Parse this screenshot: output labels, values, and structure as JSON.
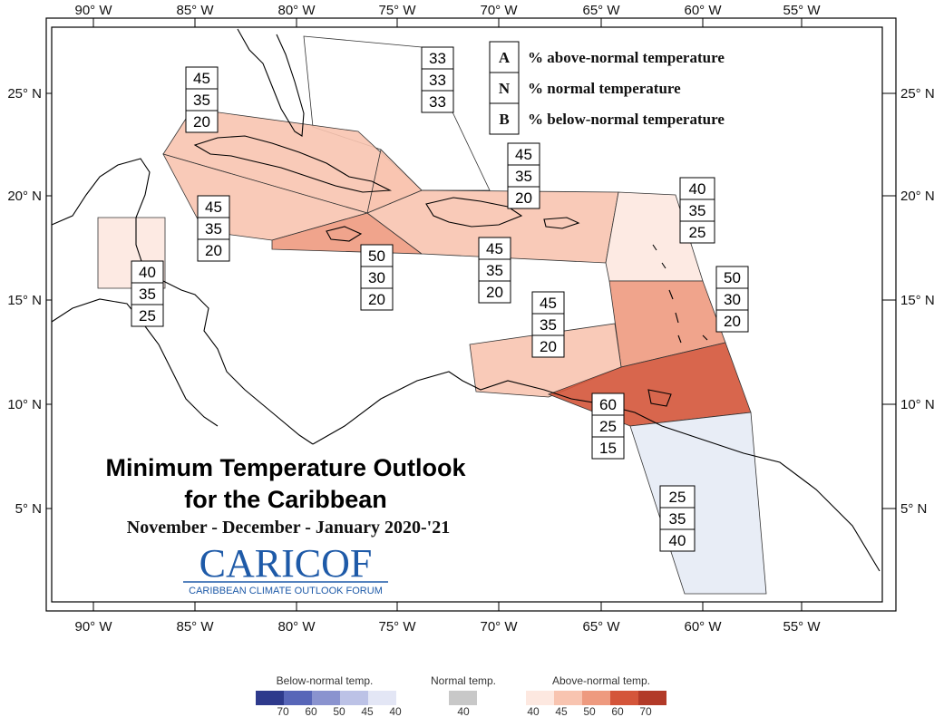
{
  "title": {
    "line1": "Minimum Temperature Outlook",
    "line2": "for the Caribbean",
    "period": "November - December - January 2020-'21"
  },
  "logo": {
    "name": "CARICOF",
    "subtitle": "CARIBBEAN CLIMATE OUTLOOK FORUM"
  },
  "axes": {
    "lon_ticks": [
      "90° W",
      "85° W",
      "80° W",
      "75° W",
      "70° W",
      "65° W",
      "60° W",
      "55° W"
    ],
    "lat_ticks": [
      "25° N",
      "20° N",
      "15° N",
      "10° N",
      "5° N"
    ]
  },
  "key": [
    {
      "letter": "A",
      "text": "% above-normal temperature"
    },
    {
      "letter": "N",
      "text": "% normal temperature"
    },
    {
      "letter": "B",
      "text": "% below-normal temperature"
    }
  ],
  "regions": [
    {
      "id": "bahamas",
      "probs": [
        "33",
        "33",
        "33"
      ],
      "category": "normal-equal"
    },
    {
      "id": "cuba",
      "probs": [
        "45",
        "35",
        "20"
      ],
      "category": "above-45"
    },
    {
      "id": "western-cuba-caymans",
      "probs": [
        "45",
        "35",
        "20"
      ],
      "category": "above-45"
    },
    {
      "id": "jamaica",
      "probs": [
        "50",
        "30",
        "20"
      ],
      "category": "above-50"
    },
    {
      "id": "hispaniola-puerto-rico",
      "probs": [
        "45",
        "35",
        "20"
      ],
      "category": "above-45"
    },
    {
      "id": "turks-caicos",
      "probs": [
        "45",
        "35",
        "20"
      ],
      "category": "above-45"
    },
    {
      "id": "belize",
      "probs": [
        "40",
        "35",
        "25"
      ],
      "category": "above-40"
    },
    {
      "id": "leeward-islands",
      "probs": [
        "40",
        "35",
        "25"
      ],
      "category": "above-40"
    },
    {
      "id": "windward-islands",
      "probs": [
        "50",
        "30",
        "20"
      ],
      "category": "above-50"
    },
    {
      "id": "abc-islands",
      "probs": [
        "45",
        "35",
        "20"
      ],
      "category": "above-45"
    },
    {
      "id": "trinidad-barbados",
      "probs": [
        "60",
        "25",
        "15"
      ],
      "category": "above-60"
    },
    {
      "id": "guianas",
      "probs": [
        "25",
        "35",
        "40"
      ],
      "category": "below-40"
    }
  ],
  "colors": {
    "above-40": "#fde8e0",
    "above-45": "#f8c4b0",
    "above-50": "#ee9a7f",
    "above-60": "#d4553a",
    "below-40": "#e6ebf5",
    "normal-equal": "#ffffff",
    "frame": "#000000"
  },
  "scale": {
    "below": {
      "title": "Below-normal temp.",
      "labels": [
        "70",
        "60",
        "50",
        "45",
        "40"
      ],
      "colors": [
        "#2e3a8c",
        "#5866b8",
        "#8a93cf",
        "#bcc2e6",
        "#e3e6f5"
      ]
    },
    "normal": {
      "title": "Normal temp.",
      "labels": [
        "40"
      ],
      "colors": [
        "#c8c8c8"
      ]
    },
    "above": {
      "title": "Above-normal temp.",
      "labels": [
        "40",
        "45",
        "50",
        "60",
        "70"
      ],
      "colors": [
        "#fde8e0",
        "#f8c4b0",
        "#ee9a7f",
        "#d4553a",
        "#b23a28"
      ]
    }
  }
}
